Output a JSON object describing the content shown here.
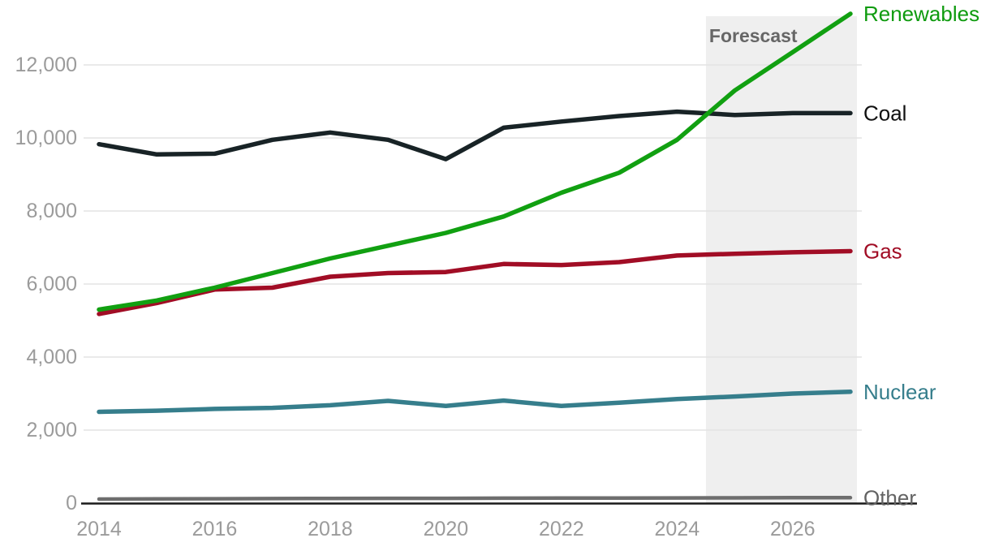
{
  "chart_data": {
    "type": "line",
    "title": "",
    "xlabel": "",
    "ylabel": "",
    "x": [
      2014,
      2015,
      2016,
      2017,
      2018,
      2019,
      2020,
      2021,
      2022,
      2023,
      2024,
      2025,
      2026,
      2027
    ],
    "series": [
      {
        "name": "Renewables",
        "color": "#11a011",
        "label_color": "#0f9b0f",
        "values": [
          5300,
          5550,
          5900,
          6300,
          6700,
          7050,
          7400,
          7850,
          8500,
          9050,
          9950,
          11300,
          12350,
          13400
        ]
      },
      {
        "name": "Coal",
        "color": "#182326",
        "label_color": "#111111",
        "values": [
          9830,
          9550,
          9570,
          9950,
          10150,
          9950,
          9420,
          10280,
          10450,
          10600,
          10720,
          10630,
          10680,
          10680
        ]
      },
      {
        "name": "Gas",
        "color": "#a10d25",
        "label_color": "#a10d25",
        "values": [
          5180,
          5480,
          5850,
          5900,
          6200,
          6300,
          6330,
          6550,
          6520,
          6600,
          6780,
          6830,
          6870,
          6900
        ]
      },
      {
        "name": "Nuclear",
        "color": "#367e8c",
        "label_color": "#367e8c",
        "values": [
          2500,
          2530,
          2580,
          2610,
          2680,
          2800,
          2660,
          2810,
          2660,
          2750,
          2850,
          2920,
          3000,
          3050
        ]
      },
      {
        "name": "Other",
        "color": "#6e6e6e",
        "label_color": "#636363",
        "values": [
          110,
          115,
          120,
          125,
          128,
          130,
          132,
          135,
          138,
          140,
          143,
          145,
          148,
          150
        ]
      }
    ],
    "x_ticks": [
      {
        "year": 2014,
        "label": "2014"
      },
      {
        "year": 2016,
        "label": "2016"
      },
      {
        "year": 2018,
        "label": "2018"
      },
      {
        "year": 2020,
        "label": "2020"
      },
      {
        "year": 2022,
        "label": "2022"
      },
      {
        "year": 2024,
        "label": "2024"
      },
      {
        "year": 2026,
        "label": "2026"
      }
    ],
    "y_ticks": [
      {
        "value": 0,
        "label": "0"
      },
      {
        "value": 2000,
        "label": "2,000"
      },
      {
        "value": 4000,
        "label": "4,000"
      },
      {
        "value": 6000,
        "label": "6,000"
      },
      {
        "value": 8000,
        "label": "8,000"
      },
      {
        "value": 10000,
        "label": "10,000"
      },
      {
        "value": 12000,
        "label": "12,000"
      }
    ],
    "ylim": [
      0,
      13400
    ],
    "grid": "horizontal",
    "legend_position": "right-of-line-ends",
    "forecast": {
      "label": "Forescast",
      "start_year": 2024.5,
      "end_year": 2027,
      "band_color": "#efefef",
      "label_color": "#666666"
    },
    "axis_colors": {
      "tick_label": "#9b9b9b",
      "gridline": "#e4e4e4",
      "baseline": "#1a1a1a"
    }
  }
}
